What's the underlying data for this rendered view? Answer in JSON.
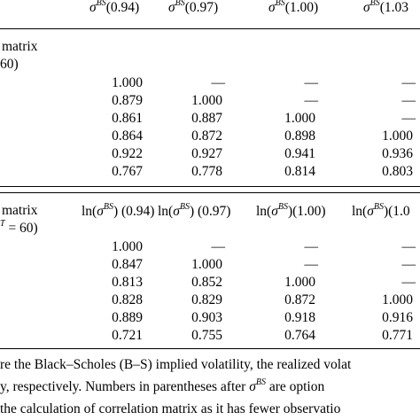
{
  "table1": {
    "headers": [
      {
        "base": "σ",
        "sup": "BS",
        "arg": "(0.94)"
      },
      {
        "base": "σ",
        "sup": "BS",
        "arg": "(0.97)"
      },
      {
        "base": "σ",
        "sup": "BS",
        "arg": "(1.00)"
      },
      {
        "base": "σ",
        "sup": "BS",
        "arg": "(1.03"
      }
    ],
    "label_line1": "matrix",
    "label_line2": "60)",
    "rows": [
      [
        "1.000",
        "—",
        "—",
        "—"
      ],
      [
        "0.879",
        "1.000",
        "—",
        "—"
      ],
      [
        "0.861",
        "0.887",
        "1.000",
        "—"
      ],
      [
        "0.864",
        "0.872",
        "0.898",
        "1.000"
      ],
      [
        "0.922",
        "0.927",
        "0.941",
        "0.936"
      ],
      [
        "0.767",
        "0.778",
        "0.814",
        "0.803"
      ]
    ]
  },
  "table2": {
    "headers": [
      {
        "pre": "ln(",
        "base": "σ",
        "sup": "BS",
        "post": ") (0.94)"
      },
      {
        "pre": "ln(",
        "base": "σ",
        "sup": "BS",
        "post": ") (0.97)"
      },
      {
        "pre": "ln(",
        "base": "σ",
        "sup": "BS",
        "post": ")(1.00)"
      },
      {
        "pre": "ln(",
        "base": "σ",
        "sup": "BS",
        "post": ")(1.0"
      }
    ],
    "label_line1": "matrix",
    "label_line2_sup": "T",
    "label_line2": "= 60)",
    "rows": [
      [
        "1.000",
        "—",
        "—",
        "—"
      ],
      [
        "0.847",
        "1.000",
        "—",
        "—"
      ],
      [
        "0.813",
        "0.852",
        "1.000",
        "—"
      ],
      [
        "0.828",
        "0.829",
        "0.872",
        "1.000"
      ],
      [
        "0.889",
        "0.903",
        "0.918",
        "0.916"
      ],
      [
        "0.721",
        "0.755",
        "0.764",
        "0.771"
      ]
    ]
  },
  "footnote": {
    "line1": "re the Black–Scholes (B–S) implied volatility, the realized volat",
    "line2_pre": "y, respectively. Numbers in parentheses after",
    "line2_sym": "σ",
    "line2_sup": "BS",
    "line2_post": "are option",
    "line3": "the calculation of correlation matrix as it has fewer observatio"
  }
}
